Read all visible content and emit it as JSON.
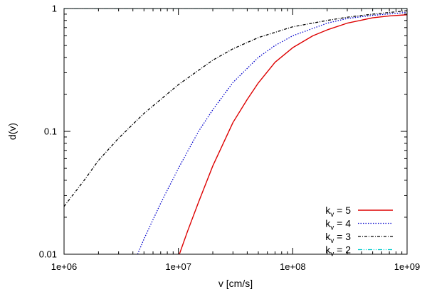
{
  "chart_data": {
    "type": "line",
    "title": "",
    "xlabel": "v [cm/s]",
    "ylabel": "d(v)",
    "xscale": "log",
    "yscale": "log",
    "xlim": [
      1000000,
      1000000000
    ],
    "ylim": [
      0.01,
      1
    ],
    "grid": false,
    "legend_position": "bottom-right",
    "x_ticks": [
      {
        "value": 1000000,
        "label": "1e+06"
      },
      {
        "value": 10000000,
        "label": "1e+07"
      },
      {
        "value": 100000000,
        "label": "1e+08"
      },
      {
        "value": 1000000000,
        "label": "1e+09"
      }
    ],
    "y_ticks": [
      {
        "value": 0.01,
        "label": "0.01"
      },
      {
        "value": 0.1,
        "label": "0.1"
      },
      {
        "value": 1,
        "label": "1"
      }
    ],
    "series": [
      {
        "name": "k_v = 5",
        "legend_base": "k",
        "legend_sub": "v",
        "legend_rest": " = 5",
        "color": "#dd0000",
        "dash": "solid",
        "points": [
          [
            10200000,
            0.01
          ],
          [
            12000000,
            0.0153
          ],
          [
            15000000,
            0.0265
          ],
          [
            20000000,
            0.0524
          ],
          [
            30000000,
            0.118
          ],
          [
            40000000,
            0.182
          ],
          [
            50000000,
            0.248
          ],
          [
            70000000,
            0.365
          ],
          [
            100000000,
            0.48
          ],
          [
            150000000,
            0.6
          ],
          [
            200000000,
            0.67
          ],
          [
            300000000,
            0.76
          ],
          [
            500000000,
            0.84
          ],
          [
            700000000,
            0.87
          ],
          [
            1000000000,
            0.89
          ]
        ]
      },
      {
        "name": "k_v = 4",
        "legend_base": "k",
        "legend_sub": "v",
        "legend_rest": " = 4",
        "color": "#0000cc",
        "dash": "dotted",
        "points": [
          [
            4400000,
            0.01
          ],
          [
            5000000,
            0.0133
          ],
          [
            7000000,
            0.026
          ],
          [
            10000000,
            0.05
          ],
          [
            15000000,
            0.1
          ],
          [
            20000000,
            0.15
          ],
          [
            30000000,
            0.25
          ],
          [
            50000000,
            0.4
          ],
          [
            70000000,
            0.5
          ],
          [
            100000000,
            0.6
          ],
          [
            200000000,
            0.76
          ],
          [
            300000000,
            0.83
          ],
          [
            500000000,
            0.88
          ],
          [
            1000000000,
            0.93
          ]
        ]
      },
      {
        "name": "k_v = 3",
        "legend_base": "k",
        "legend_sub": "v",
        "legend_rest": " = 3",
        "color": "#000000",
        "dash": "dashdot",
        "points": [
          [
            1000000,
            0.0245
          ],
          [
            1500000,
            0.04
          ],
          [
            2000000,
            0.058
          ],
          [
            3000000,
            0.088
          ],
          [
            5000000,
            0.14
          ],
          [
            10000000,
            0.24
          ],
          [
            20000000,
            0.38
          ],
          [
            30000000,
            0.47
          ],
          [
            50000000,
            0.58
          ],
          [
            100000000,
            0.71
          ],
          [
            200000000,
            0.8
          ],
          [
            300000000,
            0.85
          ],
          [
            500000000,
            0.9
          ],
          [
            1000000000,
            0.96
          ]
        ]
      },
      {
        "name": "k_v = 2",
        "legend_base": "k",
        "legend_sub": "v",
        "legend_rest": " = 2",
        "color": "#00cccc",
        "dash": "dashdotdot",
        "points": [
          [
            1000000,
            1
          ],
          [
            1000000000,
            1
          ]
        ]
      }
    ]
  }
}
